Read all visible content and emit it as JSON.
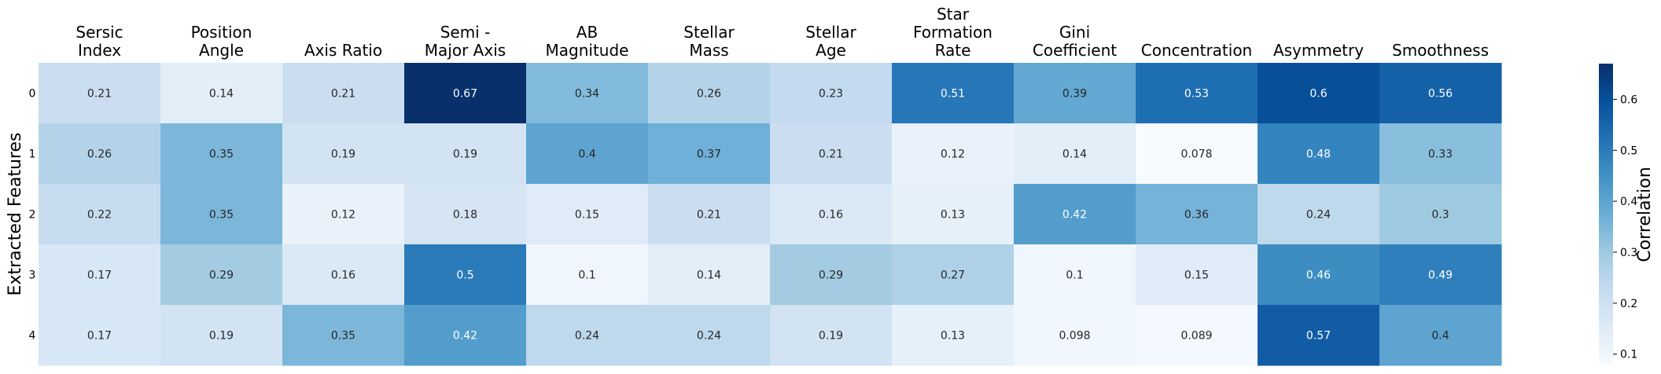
{
  "chart_data": {
    "type": "heatmap",
    "columns": [
      [
        "Sersic",
        "Index"
      ],
      [
        "Position",
        "Angle"
      ],
      [
        "Axis Ratio"
      ],
      [
        "Semi -",
        "Major Axis"
      ],
      [
        "AB",
        "Magnitude"
      ],
      [
        "Stellar",
        "Mass"
      ],
      [
        "Stellar",
        "Age"
      ],
      [
        "Star",
        "Formation",
        "Rate"
      ],
      [
        "Gini",
        "Coefficient"
      ],
      [
        "Concentration"
      ],
      [
        "Asymmetry"
      ],
      [
        "Smoothness"
      ]
    ],
    "rows": [
      "0",
      "1",
      "2",
      "3",
      "4"
    ],
    "values": [
      [
        0.21,
        0.14,
        0.21,
        0.67,
        0.34,
        0.26,
        0.23,
        0.51,
        0.39,
        0.53,
        0.6,
        0.56
      ],
      [
        0.26,
        0.35,
        0.19,
        0.19,
        0.4,
        0.37,
        0.21,
        0.12,
        0.14,
        0.078,
        0.48,
        0.33
      ],
      [
        0.22,
        0.35,
        0.12,
        0.18,
        0.15,
        0.21,
        0.16,
        0.13,
        0.42,
        0.36,
        0.24,
        0.3
      ],
      [
        0.17,
        0.29,
        0.16,
        0.5,
        0.1,
        0.14,
        0.29,
        0.27,
        0.1,
        0.15,
        0.46,
        0.49
      ],
      [
        0.17,
        0.19,
        0.35,
        0.42,
        0.24,
        0.24,
        0.19,
        0.13,
        0.098,
        0.089,
        0.57,
        0.4
      ]
    ],
    "ylabel": "Extracted Features",
    "colorbar": {
      "label": "Correlation",
      "ticks": [
        "0.1",
        "0.2",
        "0.3",
        "0.4",
        "0.5",
        "0.6"
      ],
      "range": [
        0.078,
        0.67
      ],
      "colormap": "Blues"
    },
    "annotate": true
  }
}
